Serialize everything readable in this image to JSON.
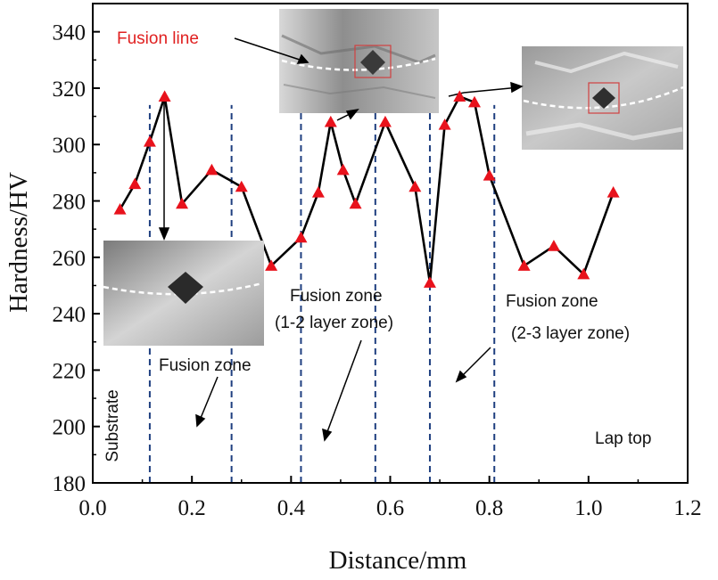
{
  "chart_data": {
    "type": "line",
    "title": "",
    "xlabel": "Distance/mm",
    "ylabel": "Hardness/HV",
    "xlim": [
      0.0,
      1.2
    ],
    "ylim": [
      180,
      350
    ],
    "xticks": [
      "0.0",
      "0.2",
      "0.4",
      "0.6",
      "0.8",
      "1.0",
      "1.2"
    ],
    "yticks": [
      "180",
      "200",
      "220",
      "240",
      "260",
      "280",
      "300",
      "320",
      "340"
    ],
    "grid": false,
    "legend": "none",
    "marker": "triangle",
    "colors": {
      "line": "#000000",
      "marker": "#e8121c",
      "zone_line": "#1f3f80",
      "fusion_line_label": "#e02020"
    },
    "series": [
      {
        "x": [
          0.055,
          0.085,
          0.115,
          0.145,
          0.18,
          0.24,
          0.3,
          0.36,
          0.42,
          0.455,
          0.48,
          0.505,
          0.53,
          0.59,
          0.65,
          0.68,
          0.71,
          0.74,
          0.77,
          0.8,
          0.87,
          0.93,
          0.99,
          1.05
        ],
        "y": [
          277,
          286,
          301,
          317,
          279,
          291,
          285,
          257,
          267,
          283,
          308,
          291,
          279,
          308,
          285,
          251,
          307,
          317,
          315,
          289,
          257,
          264,
          254,
          283
        ]
      }
    ],
    "zone_boundaries": [
      0.115,
      0.28,
      0.42,
      0.57,
      0.68,
      0.81
    ],
    "annotations": {
      "substrate": "Substrate",
      "fusion_zone": "Fusion zone",
      "fusion_zone_12_a": "Fusion zone",
      "fusion_zone_12_b": "(1-2 layer zone)",
      "fusion_zone_23_a": "Fusion zone",
      "fusion_zone_23_b": "(2-3 layer zone)",
      "lap_top": "Lap top",
      "fusion_line": "Fusion line"
    }
  }
}
